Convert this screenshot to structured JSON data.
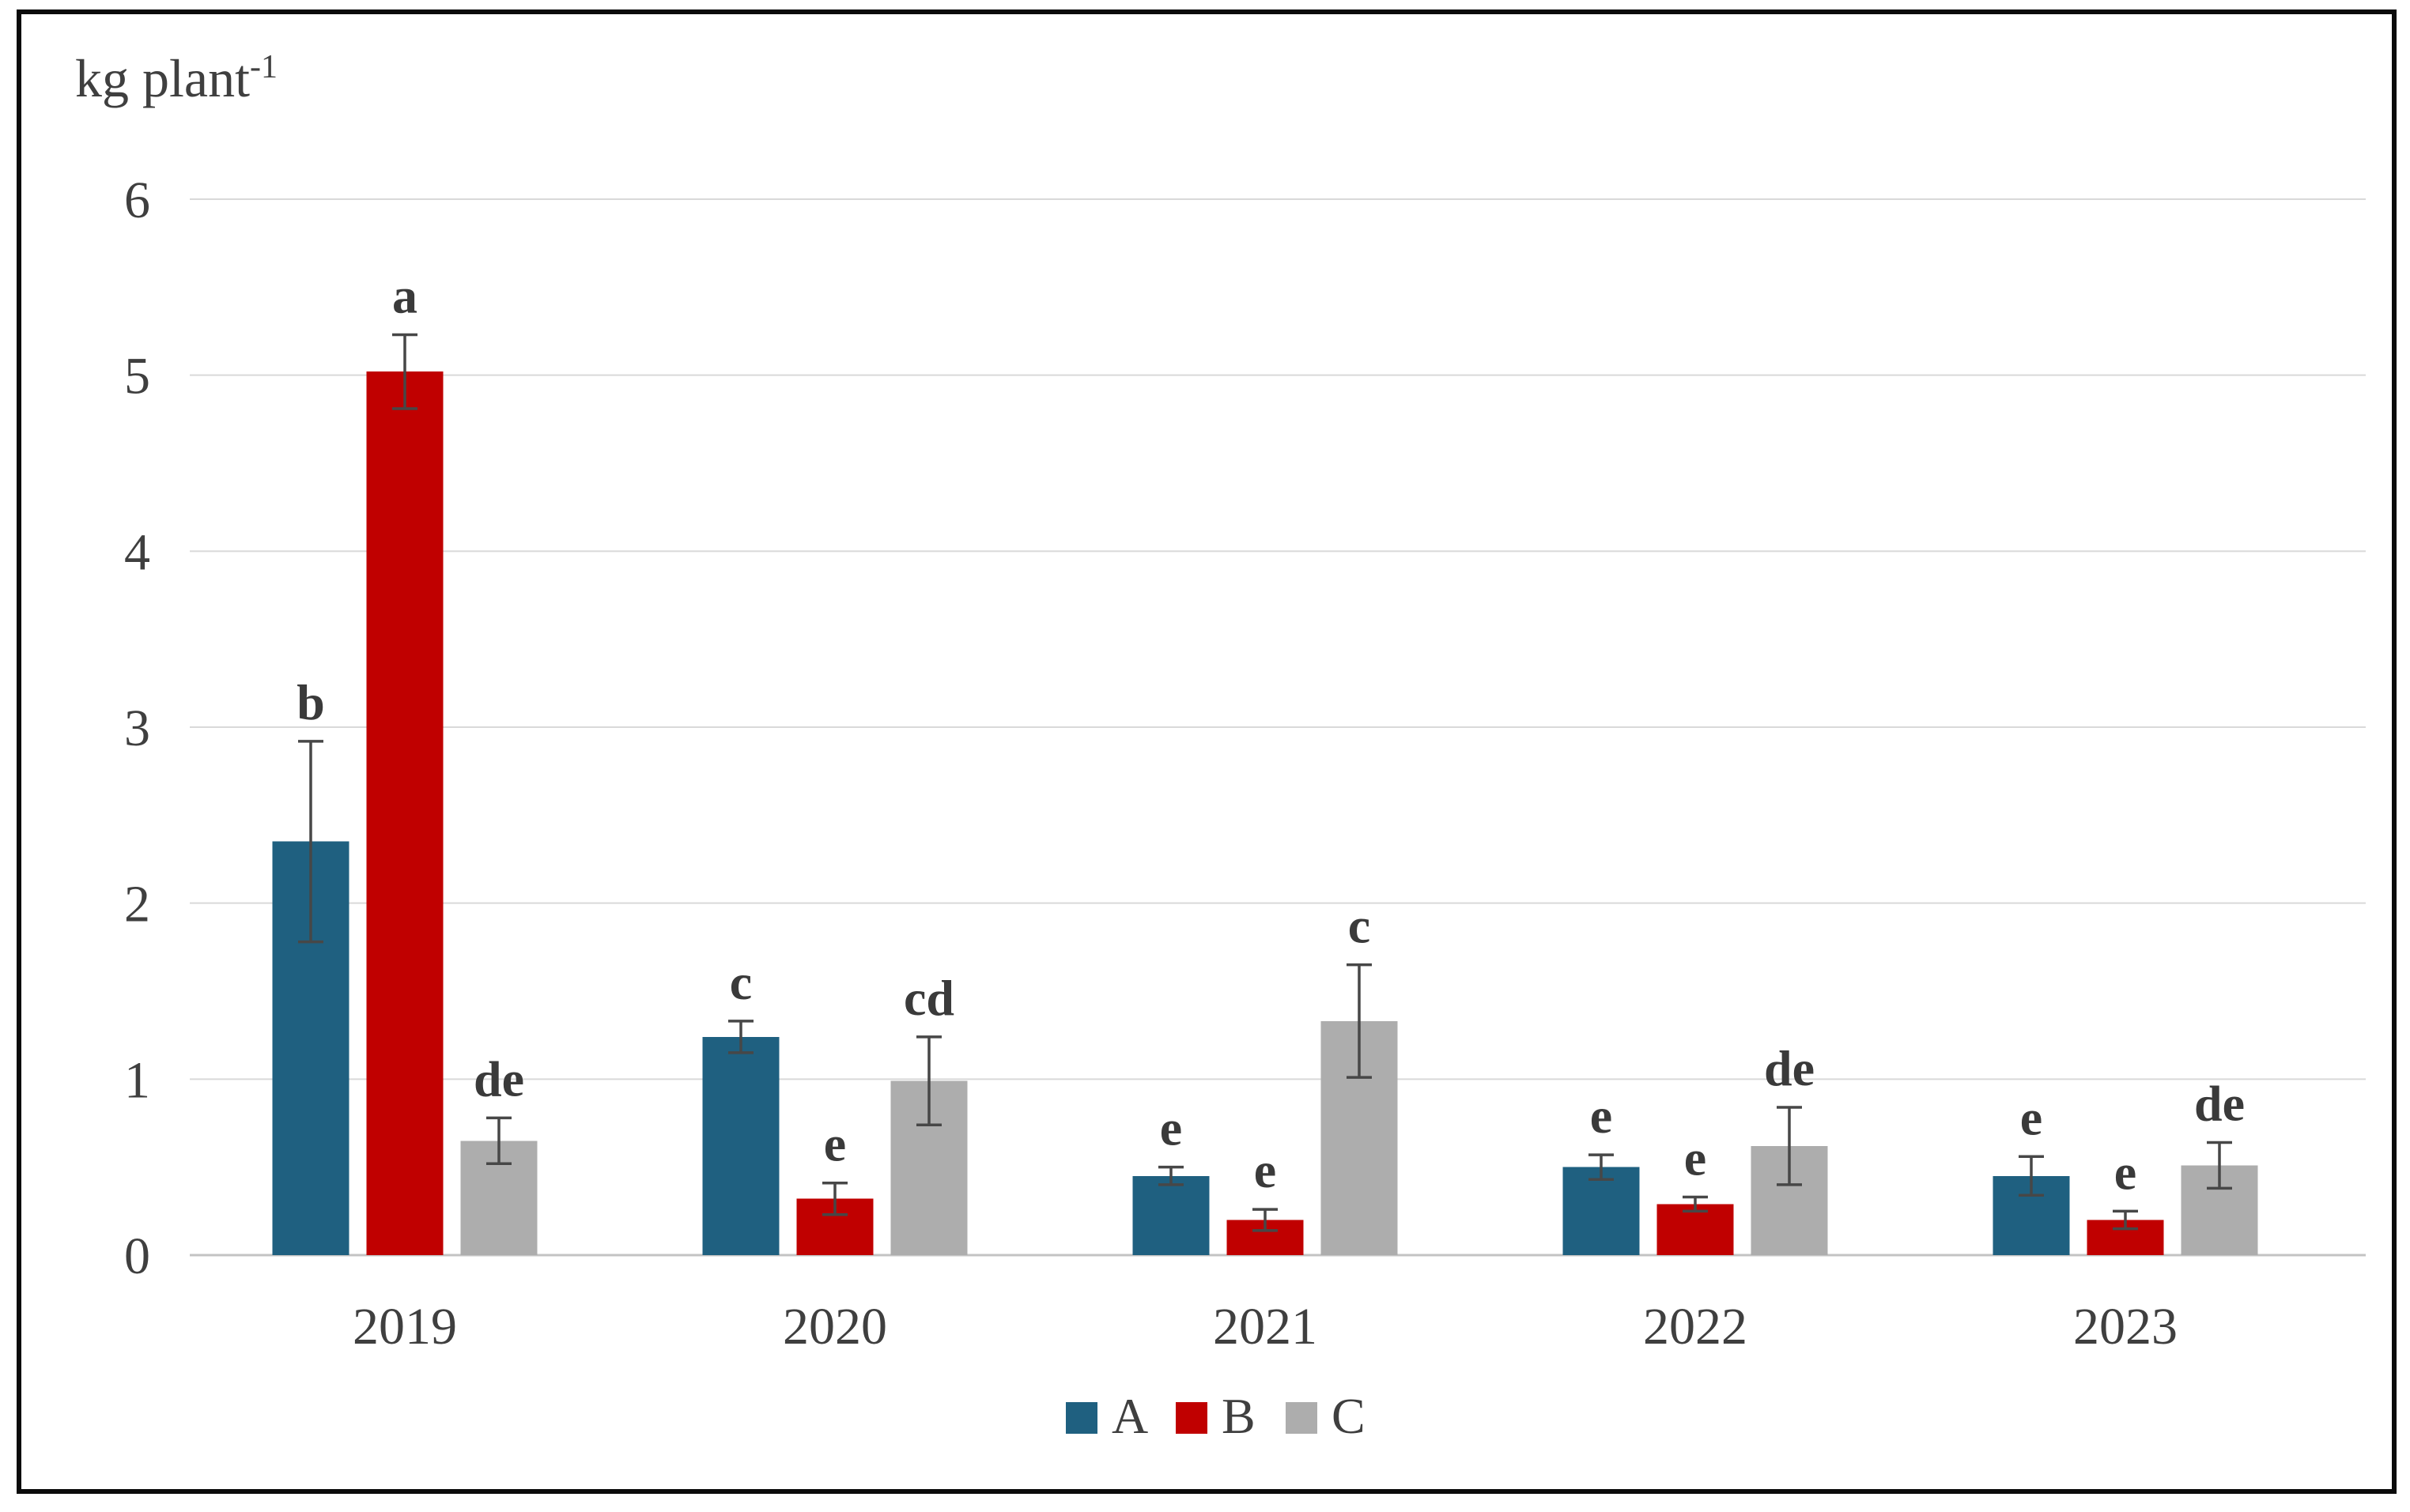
{
  "figure": {
    "background_color": "#ffffff",
    "frame_color": "#0b0b0b"
  },
  "chart_data": {
    "type": "bar",
    "title": "",
    "ylabel": "kg plant-1",
    "ylabel_parts": {
      "text": "kg plant",
      "superscript": "-1"
    },
    "xlabel": "",
    "categories": [
      "2019",
      "2020",
      "2021",
      "2022",
      "2023"
    ],
    "series": [
      {
        "name": "A",
        "color": "#1F6080",
        "values": [
          2.35,
          1.24,
          0.45,
          0.5,
          0.45
        ],
        "errors": [
          0.57,
          0.09,
          0.05,
          0.07,
          0.11
        ],
        "letters": [
          "b",
          "c",
          "e",
          "e",
          "e"
        ]
      },
      {
        "name": "B",
        "color": "#C00000",
        "values": [
          5.02,
          0.32,
          0.2,
          0.29,
          0.2
        ],
        "errors": [
          0.21,
          0.09,
          0.06,
          0.04,
          0.05
        ],
        "letters": [
          "a",
          "e",
          "e",
          "e",
          "e"
        ]
      },
      {
        "name": "C",
        "color": "#ADADAD",
        "values": [
          0.65,
          0.99,
          1.33,
          0.62,
          0.51
        ],
        "errors": [
          0.13,
          0.25,
          0.32,
          0.22,
          0.13
        ],
        "letters": [
          "de",
          "cd",
          "c",
          "de",
          "de"
        ]
      }
    ],
    "ylim": [
      0,
      6
    ],
    "yticks": [
      0,
      1,
      2,
      3,
      4,
      5,
      6
    ],
    "grid": true,
    "legend_position": "bottom",
    "legend": [
      "A",
      "B",
      "C"
    ],
    "error_bars": true
  },
  "style": {
    "text_color": "#3f3f3f",
    "letter_color": "#3a3a3a",
    "gridline_color": "#d9d9d9",
    "baseline_color": "#c3c3c3",
    "error_bar_color": "#474747"
  }
}
